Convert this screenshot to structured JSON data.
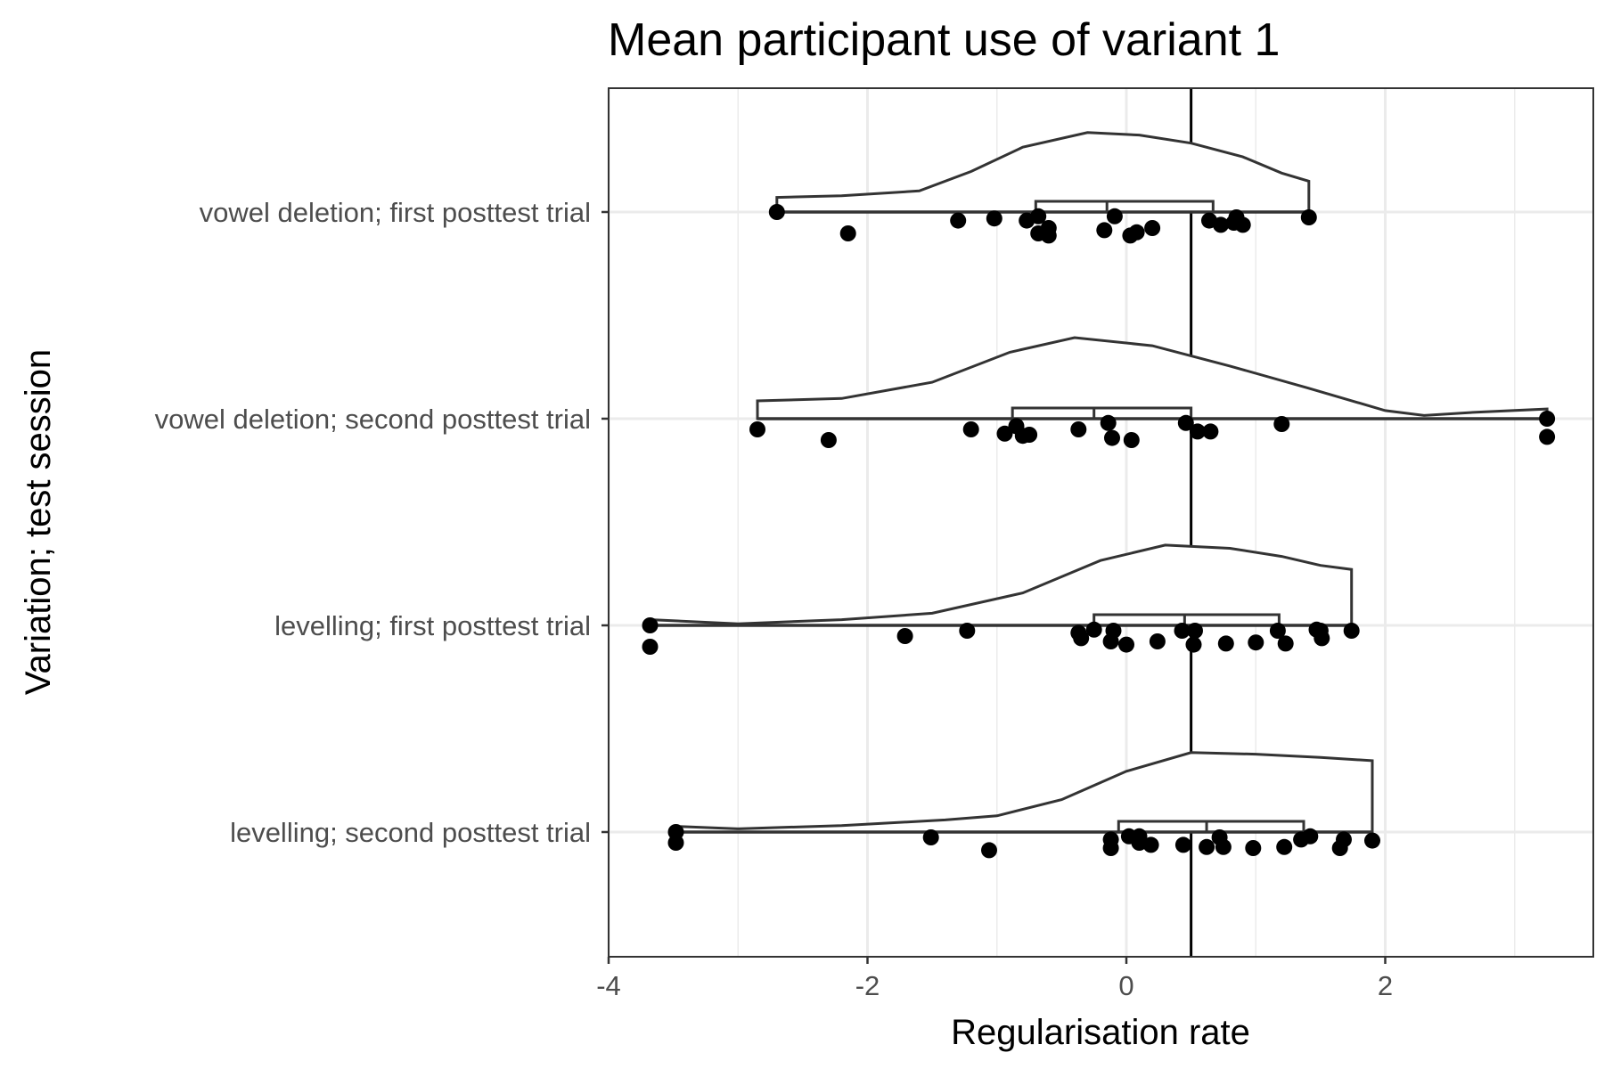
{
  "chart_data": {
    "type": "raincloud",
    "title": "Mean participant use of variant 1",
    "xlabel": "Regularisation rate",
    "ylabel": "Variation; test session",
    "xlim": [
      -4,
      3.6
    ],
    "x_ticks": [
      -4,
      -2,
      0,
      2
    ],
    "x_tick_labels": [
      "-4",
      "-2",
      "0",
      "2"
    ],
    "reference_line_x": 0.5,
    "grid": true,
    "categories": [
      "vowel deletion; first posttest trial",
      "vowel deletion; second posttest trial",
      "levelling; first posttest trial",
      "levelling; second posttest trial"
    ],
    "series": [
      {
        "category": "vowel deletion; first posttest trial",
        "box": {
          "min": -2.7,
          "q1": -0.7,
          "median": -0.15,
          "q3": 0.67,
          "max": 1.41
        },
        "density": [
          [
            -2.7,
            0.18
          ],
          [
            -2.2,
            0.2
          ],
          [
            -1.6,
            0.26
          ],
          [
            -1.2,
            0.5
          ],
          [
            -0.8,
            0.8
          ],
          [
            -0.3,
            0.98
          ],
          [
            0.1,
            0.95
          ],
          [
            0.5,
            0.85
          ],
          [
            0.9,
            0.68
          ],
          [
            1.2,
            0.48
          ],
          [
            1.41,
            0.38
          ]
        ],
        "points": [
          [
            -2.7,
            0
          ],
          [
            -2.15,
            -0.2
          ],
          [
            -1.3,
            -0.08
          ],
          [
            -1.02,
            -0.06
          ],
          [
            -0.77,
            -0.08
          ],
          [
            -0.68,
            -0.04
          ],
          [
            -0.68,
            -0.2
          ],
          [
            -0.6,
            -0.15
          ],
          [
            -0.6,
            -0.22
          ],
          [
            -0.17,
            -0.17
          ],
          [
            -0.09,
            -0.04
          ],
          [
            0.03,
            -0.22
          ],
          [
            0.08,
            -0.19
          ],
          [
            0.2,
            -0.15
          ],
          [
            0.64,
            -0.08
          ],
          [
            0.73,
            -0.12
          ],
          [
            0.83,
            -0.1
          ],
          [
            0.85,
            -0.05
          ],
          [
            0.9,
            -0.12
          ],
          [
            1.41,
            -0.05
          ]
        ]
      },
      {
        "category": "vowel deletion; second posttest trial",
        "box": {
          "min": -2.85,
          "q1": -0.88,
          "median": -0.25,
          "q3": 0.5,
          "max": 3.25
        },
        "density": [
          [
            -2.85,
            0.22
          ],
          [
            -2.2,
            0.25
          ],
          [
            -1.5,
            0.45
          ],
          [
            -0.9,
            0.82
          ],
          [
            -0.4,
            1.0
          ],
          [
            0.2,
            0.9
          ],
          [
            0.8,
            0.65
          ],
          [
            1.4,
            0.38
          ],
          [
            2.0,
            0.1
          ],
          [
            2.3,
            0.04
          ],
          [
            2.7,
            0.08
          ],
          [
            3.25,
            0.12
          ]
        ],
        "points": [
          [
            -2.85,
            -0.1
          ],
          [
            -2.3,
            -0.2
          ],
          [
            -1.2,
            -0.1
          ],
          [
            -0.94,
            -0.14
          ],
          [
            -0.85,
            -0.07
          ],
          [
            -0.8,
            -0.16
          ],
          [
            -0.75,
            -0.15
          ],
          [
            -0.37,
            -0.1
          ],
          [
            -0.14,
            -0.04
          ],
          [
            -0.11,
            -0.18
          ],
          [
            0.04,
            -0.2
          ],
          [
            0.46,
            -0.04
          ],
          [
            0.55,
            -0.12
          ],
          [
            0.65,
            -0.12
          ],
          [
            1.2,
            -0.05
          ],
          [
            3.25,
            0
          ],
          [
            3.25,
            -0.17
          ]
        ]
      },
      {
        "category": "levelling; first posttest trial",
        "box": {
          "min": -3.68,
          "q1": -0.25,
          "median": 0.45,
          "q3": 1.18,
          "max": 1.74
        },
        "density": [
          [
            -3.68,
            0.07
          ],
          [
            -3.0,
            0.02
          ],
          [
            -2.2,
            0.07
          ],
          [
            -1.5,
            0.15
          ],
          [
            -0.8,
            0.4
          ],
          [
            -0.2,
            0.8
          ],
          [
            0.3,
            0.99
          ],
          [
            0.8,
            0.95
          ],
          [
            1.2,
            0.85
          ],
          [
            1.5,
            0.74
          ],
          [
            1.74,
            0.69
          ]
        ],
        "points": [
          [
            -3.68,
            0
          ],
          [
            -3.68,
            -0.2
          ],
          [
            -1.71,
            -0.1
          ],
          [
            -1.23,
            -0.05
          ],
          [
            -0.37,
            -0.07
          ],
          [
            -0.35,
            -0.12
          ],
          [
            -0.25,
            -0.04
          ],
          [
            -0.12,
            -0.15
          ],
          [
            -0.1,
            -0.05
          ],
          [
            0.0,
            -0.18
          ],
          [
            0.24,
            -0.15
          ],
          [
            0.43,
            -0.05
          ],
          [
            0.52,
            -0.18
          ],
          [
            0.53,
            -0.05
          ],
          [
            0.77,
            -0.17
          ],
          [
            1.0,
            -0.16
          ],
          [
            1.17,
            -0.05
          ],
          [
            1.23,
            -0.17
          ],
          [
            1.47,
            -0.04
          ],
          [
            1.5,
            -0.05
          ],
          [
            1.51,
            -0.12
          ],
          [
            1.74,
            -0.05
          ]
        ]
      },
      {
        "category": "levelling; second posttest trial",
        "box": {
          "min": -3.48,
          "q1": -0.06,
          "median": 0.62,
          "q3": 1.37,
          "max": 1.9
        },
        "density": [
          [
            -3.48,
            0.07
          ],
          [
            -3.0,
            0.04
          ],
          [
            -2.2,
            0.08
          ],
          [
            -1.4,
            0.15
          ],
          [
            -1.0,
            0.2
          ],
          [
            -0.5,
            0.4
          ],
          [
            0.0,
            0.75
          ],
          [
            0.5,
            0.98
          ],
          [
            1.0,
            0.96
          ],
          [
            1.5,
            0.92
          ],
          [
            1.9,
            0.88
          ]
        ],
        "points": [
          [
            -3.48,
            0
          ],
          [
            -3.48,
            -0.1
          ],
          [
            -1.51,
            -0.05
          ],
          [
            -1.06,
            -0.17
          ],
          [
            -0.12,
            -0.07
          ],
          [
            -0.12,
            -0.15
          ],
          [
            0.02,
            -0.04
          ],
          [
            0.1,
            -0.04
          ],
          [
            0.1,
            -0.1
          ],
          [
            0.19,
            -0.12
          ],
          [
            0.44,
            -0.12
          ],
          [
            0.62,
            -0.14
          ],
          [
            0.72,
            -0.05
          ],
          [
            0.75,
            -0.14
          ],
          [
            0.98,
            -0.15
          ],
          [
            1.22,
            -0.14
          ],
          [
            1.35,
            -0.07
          ],
          [
            1.42,
            -0.04
          ],
          [
            1.65,
            -0.15
          ],
          [
            1.68,
            -0.07
          ],
          [
            1.9,
            -0.08
          ]
        ]
      }
    ]
  }
}
